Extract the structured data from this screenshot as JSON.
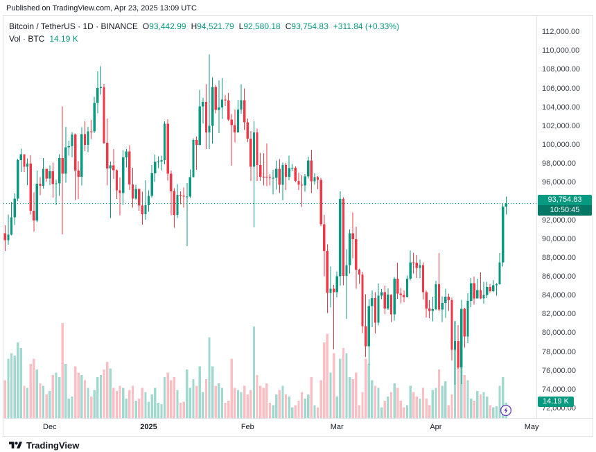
{
  "published_line": "Published on TradingView.com, Apr 23, 2025 13:09 UTC",
  "legend": {
    "symbol": "Bitcoin / TetherUS · 1D · BINANCE",
    "o_label": "O",
    "o": "93,442.99",
    "h_label": "H",
    "h": "94,521.79",
    "l_label": "L",
    "l": "92,580.18",
    "c_label": "C",
    "c": "93,754.83",
    "change": "+311.84 (+0.33%)",
    "vol_label": "Vol · BTC",
    "vol_value": "14.19 K"
  },
  "last_price": {
    "value": "93,754.83",
    "countdown": "10:50:45"
  },
  "volume_badge": "14.19 K",
  "price_axis": {
    "labels": [
      "112,000.00",
      "110,000.00",
      "108,000.00",
      "106,000.00",
      "104,000.00",
      "102,000.00",
      "100,000.00",
      "98,000.00",
      "96,000.00",
      "94,000.00",
      "92,000.00",
      "90,000.00",
      "88,000.00",
      "86,000.00",
      "84,000.00",
      "82,000.00",
      "80,000.00",
      "78,000.00",
      "76,000.00",
      "74,000.00",
      "72,000.00"
    ]
  },
  "time_axis": {
    "labels": [
      {
        "text": "Dec",
        "date": "2024-12-01",
        "emphasis": false
      },
      {
        "text": "2025",
        "date": "2025-01-01",
        "emphasis": true
      },
      {
        "text": "Feb",
        "date": "2025-02-01",
        "emphasis": false
      },
      {
        "text": "Mar",
        "date": "2025-03-01",
        "emphasis": false
      },
      {
        "text": "Apr",
        "date": "2025-04-01",
        "emphasis": false
      },
      {
        "text": "May",
        "date": "2025-05-01",
        "emphasis": false
      }
    ]
  },
  "footer": {
    "brand": "TradingView"
  },
  "colors": {
    "up": "#089981",
    "down": "#f23645",
    "vol_up": "rgba(8,153,129,0.38)",
    "vol_down": "rgba(242,54,69,0.32)",
    "badge": "#089981",
    "flash": "#673ab7",
    "axis_text": "#3c4049"
  },
  "chart_data": {
    "type": "candlestick+volume",
    "title": "Bitcoin / TetherUS · 1D · BINANCE",
    "interval": "1D",
    "price_range": [
      72000,
      112000
    ],
    "price_tick_step": 2000,
    "volume_unit": "K BTC",
    "grid": false,
    "columns": [
      "date",
      "open",
      "high",
      "low",
      "close",
      "volume_kbtc"
    ],
    "candles": [
      [
        "2024-11-17",
        90587,
        91449,
        88722,
        89855,
        35
      ],
      [
        "2024-11-18",
        89855,
        92594,
        89376,
        90466,
        55
      ],
      [
        "2024-11-19",
        90466,
        93905,
        90373,
        92310,
        60
      ],
      [
        "2024-11-20",
        92310,
        94831,
        91500,
        94278,
        58
      ],
      [
        "2024-11-21",
        94278,
        98504,
        94040,
        98381,
        70
      ],
      [
        "2024-11-22",
        98381,
        99588,
        97123,
        98997,
        65
      ],
      [
        "2024-11-23",
        98997,
        99000,
        97138,
        97672,
        30
      ],
      [
        "2024-11-24",
        97672,
        98564,
        95734,
        98013,
        28
      ],
      [
        "2024-11-25",
        98013,
        98871,
        92600,
        93010,
        50
      ],
      [
        "2024-11-26",
        93010,
        94950,
        90791,
        91965,
        55
      ],
      [
        "2024-11-27",
        91965,
        97270,
        91792,
        95863,
        45
      ],
      [
        "2024-11-28",
        95863,
        96570,
        94640,
        95652,
        32
      ],
      [
        "2024-11-29",
        95652,
        98599,
        95364,
        97438,
        30
      ],
      [
        "2024-11-30",
        97438,
        97461,
        96098,
        96405,
        22
      ],
      [
        "2024-12-01",
        96405,
        97834,
        95712,
        97185,
        25
      ],
      [
        "2024-12-02",
        97185,
        98130,
        94395,
        95840,
        40
      ],
      [
        "2024-12-03",
        95840,
        96300,
        93578,
        95900,
        42
      ],
      [
        "2024-12-04",
        95900,
        99000,
        94587,
        98587,
        38
      ],
      [
        "2024-12-05",
        98587,
        104088,
        90500,
        96945,
        88
      ],
      [
        "2024-12-06",
        96945,
        101898,
        95987,
        99740,
        50
      ],
      [
        "2024-12-07",
        99740,
        100439,
        98844,
        99831,
        18
      ],
      [
        "2024-12-08",
        99831,
        101351,
        98657,
        101109,
        20
      ],
      [
        "2024-12-09",
        101109,
        101215,
        94150,
        97276,
        48
      ],
      [
        "2024-12-10",
        97276,
        98270,
        94256,
        96593,
        42
      ],
      [
        "2024-12-11",
        96593,
        101888,
        95689,
        101125,
        40
      ],
      [
        "2024-12-12",
        101125,
        102495,
        99312,
        100004,
        35
      ],
      [
        "2024-12-13",
        100004,
        101895,
        99220,
        101424,
        28
      ],
      [
        "2024-12-14",
        101424,
        102650,
        100609,
        101420,
        20
      ],
      [
        "2024-12-15",
        101420,
        105120,
        101234,
        104463,
        26
      ],
      [
        "2024-12-16",
        104463,
        107793,
        103333,
        106029,
        38
      ],
      [
        "2024-12-17",
        106029,
        108364,
        105321,
        106140,
        40
      ],
      [
        "2024-12-18",
        106140,
        106477,
        100081,
        100204,
        45
      ],
      [
        "2024-12-19",
        100204,
        102800,
        95672,
        97490,
        52
      ],
      [
        "2024-12-20",
        97490,
        98233,
        92232,
        97805,
        46
      ],
      [
        "2024-12-21",
        97805,
        99540,
        96398,
        97291,
        28
      ],
      [
        "2024-12-22",
        97291,
        97393,
        94250,
        95186,
        25
      ],
      [
        "2024-12-23",
        95186,
        96538,
        92520,
        94881,
        30
      ],
      [
        "2024-12-24",
        94881,
        99430,
        93570,
        98676,
        28
      ],
      [
        "2024-12-25",
        98676,
        99568,
        97598,
        99299,
        18
      ],
      [
        "2024-12-26",
        99299,
        99963,
        95199,
        95795,
        26
      ],
      [
        "2024-12-27",
        95795,
        97544,
        93310,
        94298,
        30
      ],
      [
        "2024-12-28",
        94298,
        95764,
        94135,
        95300,
        16
      ],
      [
        "2024-12-29",
        95300,
        95340,
        93009,
        93530,
        18
      ],
      [
        "2024-12-30",
        93530,
        95024,
        91530,
        92643,
        28
      ],
      [
        "2024-12-31",
        92643,
        96250,
        92033,
        93576,
        24
      ],
      [
        "2025-01-01",
        93576,
        95151,
        92888,
        94591,
        15
      ],
      [
        "2025-01-02",
        94591,
        97839,
        94392,
        96984,
        22
      ],
      [
        "2025-01-03",
        96984,
        98972,
        96101,
        98174,
        28
      ],
      [
        "2025-01-04",
        98174,
        98778,
        97538,
        98236,
        14
      ],
      [
        "2025-01-05",
        98236,
        98836,
        97276,
        98363,
        13
      ],
      [
        "2025-01-06",
        98363,
        102480,
        97920,
        102235,
        38
      ],
      [
        "2025-01-07",
        102235,
        102724,
        96181,
        96954,
        42
      ],
      [
        "2025-01-08",
        96954,
        97257,
        92500,
        95060,
        35
      ],
      [
        "2025-01-09",
        95060,
        95382,
        91203,
        92552,
        38
      ],
      [
        "2025-01-10",
        92552,
        95836,
        92206,
        94701,
        26
      ],
      [
        "2025-01-11",
        94701,
        95050,
        93712,
        94566,
        14
      ],
      [
        "2025-01-12",
        94566,
        95450,
        93336,
        94488,
        15
      ],
      [
        "2025-01-13",
        94488,
        95940,
        89256,
        94516,
        45
      ],
      [
        "2025-01-14",
        94516,
        97371,
        94346,
        96560,
        28
      ],
      [
        "2025-01-15",
        96560,
        100681,
        96543,
        100497,
        36
      ],
      [
        "2025-01-16",
        100497,
        100866,
        97335,
        99987,
        30
      ],
      [
        "2025-01-17",
        99987,
        105865,
        99950,
        104077,
        48
      ],
      [
        "2025-01-18",
        104077,
        104987,
        102277,
        104556,
        24
      ],
      [
        "2025-01-19",
        104556,
        106422,
        99556,
        101331,
        36
      ],
      [
        "2025-01-20",
        101331,
        109588,
        99550,
        102016,
        75
      ],
      [
        "2025-01-21",
        102016,
        107181,
        100100,
        106146,
        48
      ],
      [
        "2025-01-22",
        106146,
        106376,
        103339,
        103706,
        30
      ],
      [
        "2025-01-23",
        103706,
        106850,
        101252,
        103960,
        32
      ],
      [
        "2025-01-24",
        103960,
        107098,
        102750,
        104819,
        28
      ],
      [
        "2025-01-25",
        104819,
        105248,
        104106,
        104714,
        14
      ],
      [
        "2025-01-26",
        104714,
        105500,
        102520,
        102682,
        16
      ],
      [
        "2025-01-27",
        102682,
        103260,
        97777,
        102087,
        55
      ],
      [
        "2025-01-28",
        102087,
        103741,
        100266,
        101335,
        28
      ],
      [
        "2025-01-29",
        101335,
        104782,
        101328,
        103733,
        26
      ],
      [
        "2025-01-30",
        103733,
        106457,
        103298,
        104735,
        24
      ],
      [
        "2025-01-31",
        104735,
        106012,
        101560,
        102405,
        30
      ],
      [
        "2025-02-01",
        102405,
        102783,
        100279,
        100655,
        22
      ],
      [
        "2025-02-02",
        100655,
        101456,
        96150,
        97688,
        26
      ],
      [
        "2025-02-03",
        97688,
        102500,
        91231,
        101328,
        85
      ],
      [
        "2025-02-04",
        101328,
        101732,
        96150,
        97871,
        40
      ],
      [
        "2025-02-05",
        97871,
        99149,
        96155,
        96615,
        30
      ],
      [
        "2025-02-06",
        96615,
        99120,
        95676,
        96593,
        28
      ],
      [
        "2025-02-07",
        96593,
        100138,
        95628,
        96529,
        32
      ],
      [
        "2025-02-08",
        96529,
        96894,
        95688,
        96482,
        14
      ],
      [
        "2025-02-09",
        96482,
        97324,
        94713,
        96500,
        12
      ],
      [
        "2025-02-10",
        96500,
        98345,
        95256,
        97437,
        22
      ],
      [
        "2025-02-11",
        97437,
        98478,
        94876,
        95747,
        26
      ],
      [
        "2025-02-12",
        95747,
        98119,
        94088,
        97869,
        30
      ],
      [
        "2025-02-13",
        97869,
        98083,
        95217,
        96608,
        22
      ],
      [
        "2025-02-14",
        96608,
        98841,
        96252,
        97508,
        20
      ],
      [
        "2025-02-15",
        97508,
        97972,
        97205,
        97570,
        10
      ],
      [
        "2025-02-16",
        97570,
        97704,
        96046,
        96175,
        12
      ],
      [
        "2025-02-17",
        96175,
        97046,
        95222,
        95773,
        16
      ],
      [
        "2025-02-18",
        95773,
        96753,
        93388,
        95671,
        24
      ],
      [
        "2025-02-19",
        95671,
        96899,
        95022,
        96644,
        18
      ],
      [
        "2025-02-20",
        96644,
        98756,
        96414,
        98333,
        22
      ],
      [
        "2025-02-21",
        98333,
        99475,
        94871,
        96125,
        38
      ],
      [
        "2025-02-22",
        96125,
        96975,
        95751,
        96577,
        12
      ],
      [
        "2025-02-23",
        96577,
        96671,
        95271,
        96273,
        10
      ],
      [
        "2025-02-24",
        96273,
        96500,
        91349,
        91552,
        35
      ],
      [
        "2025-02-25",
        91552,
        92540,
        86050,
        88736,
        70
      ],
      [
        "2025-02-26",
        88736,
        89413,
        82131,
        84250,
        78
      ],
      [
        "2025-02-27",
        84250,
        87078,
        82716,
        84709,
        42
      ],
      [
        "2025-02-28",
        84709,
        85120,
        78258,
        84349,
        60
      ],
      [
        "2025-03-01",
        84349,
        86558,
        83794,
        86031,
        20
      ],
      [
        "2025-03-02",
        86031,
        95043,
        85040,
        94261,
        55
      ],
      [
        "2025-03-03",
        94261,
        94416,
        85081,
        86065,
        65
      ],
      [
        "2025-03-04",
        86065,
        88911,
        81500,
        87222,
        60
      ],
      [
        "2025-03-05",
        87222,
        91000,
        86334,
        90606,
        38
      ],
      [
        "2025-03-06",
        90606,
        92810,
        87960,
        89962,
        36
      ],
      [
        "2025-03-07",
        89962,
        91283,
        84717,
        86742,
        42
      ],
      [
        "2025-03-08",
        86742,
        86847,
        85219,
        86222,
        12
      ],
      [
        "2025-03-09",
        86222,
        86500,
        80000,
        80734,
        24
      ],
      [
        "2025-03-10",
        80734,
        84123,
        77459,
        78595,
        55
      ],
      [
        "2025-03-11",
        78595,
        83617,
        76606,
        82862,
        50
      ],
      [
        "2025-03-12",
        82862,
        84539,
        80607,
        83722,
        35
      ],
      [
        "2025-03-13",
        83722,
        84336,
        79939,
        81115,
        30
      ],
      [
        "2025-03-14",
        81115,
        85263,
        80818,
        83983,
        28
      ],
      [
        "2025-03-15",
        83983,
        84676,
        83618,
        84343,
        10
      ],
      [
        "2025-03-16",
        84343,
        85051,
        82037,
        82625,
        16
      ],
      [
        "2025-03-17",
        82625,
        84756,
        82465,
        84075,
        20
      ],
      [
        "2025-03-18",
        84075,
        84104,
        81184,
        81998,
        24
      ],
      [
        "2025-03-19",
        81998,
        85966,
        81330,
        85786,
        32
      ],
      [
        "2025-03-20",
        85786,
        87453,
        83649,
        84175,
        28
      ],
      [
        "2025-03-21",
        84175,
        84790,
        83150,
        84043,
        16
      ],
      [
        "2025-03-22",
        84043,
        84522,
        83283,
        83832,
        10
      ],
      [
        "2025-03-23",
        83832,
        86092,
        83796,
        85787,
        12
      ],
      [
        "2025-03-24",
        85787,
        88765,
        85600,
        87498,
        30
      ],
      [
        "2025-03-25",
        87498,
        88543,
        86322,
        87471,
        24
      ],
      [
        "2025-03-26",
        87471,
        88287,
        85861,
        86900,
        20
      ],
      [
        "2025-03-27",
        86900,
        87786,
        85836,
        87227,
        18
      ],
      [
        "2025-03-28",
        87227,
        87489,
        83566,
        84353,
        28
      ],
      [
        "2025-03-29",
        84353,
        84541,
        81644,
        82597,
        18
      ],
      [
        "2025-03-30",
        82597,
        83506,
        81565,
        82334,
        12
      ],
      [
        "2025-03-31",
        82334,
        83870,
        81256,
        82548,
        26
      ],
      [
        "2025-04-01",
        82548,
        85558,
        82427,
        85169,
        28
      ],
      [
        "2025-04-02",
        85169,
        88500,
        82298,
        82485,
        45
      ],
      [
        "2025-04-03",
        82485,
        83909,
        81162,
        83205,
        30
      ],
      [
        "2025-04-04",
        83205,
        84696,
        81619,
        83843,
        34
      ],
      [
        "2025-04-05",
        83843,
        84207,
        82350,
        83504,
        12
      ],
      [
        "2025-04-06",
        83504,
        83768,
        77097,
        78214,
        22
      ],
      [
        "2025-04-07",
        78214,
        81243,
        74508,
        79163,
        90
      ],
      [
        "2025-04-08",
        79163,
        80823,
        76198,
        76329,
        50
      ],
      [
        "2025-04-09",
        76329,
        83541,
        74589,
        82574,
        82
      ],
      [
        "2025-04-10",
        82574,
        82700,
        78456,
        79626,
        40
      ],
      [
        "2025-04-11",
        79626,
        84247,
        78936,
        83404,
        35
      ],
      [
        "2025-04-12",
        83404,
        85856,
        82769,
        85287,
        18
      ],
      [
        "2025-04-13",
        85287,
        86000,
        83027,
        83684,
        16
      ],
      [
        "2025-04-14",
        83684,
        85785,
        83674,
        84542,
        25
      ],
      [
        "2025-04-15",
        84542,
        86450,
        83600,
        83668,
        22
      ],
      [
        "2025-04-16",
        83668,
        85437,
        83110,
        84030,
        24
      ],
      [
        "2025-04-17",
        84030,
        85450,
        83729,
        84895,
        20
      ],
      [
        "2025-04-18",
        84895,
        85180,
        84297,
        84450,
        12
      ],
      [
        "2025-04-19",
        84450,
        85626,
        84322,
        85063,
        10
      ],
      [
        "2025-04-20",
        85063,
        85306,
        83977,
        85174,
        11
      ],
      [
        "2025-04-21",
        85174,
        88483,
        85143,
        87519,
        30
      ],
      [
        "2025-04-22",
        87519,
        93817,
        87081,
        93441,
        38
      ],
      [
        "2025-04-23",
        93442.99,
        94521.79,
        92580.18,
        93754.83,
        14.19
      ]
    ]
  }
}
